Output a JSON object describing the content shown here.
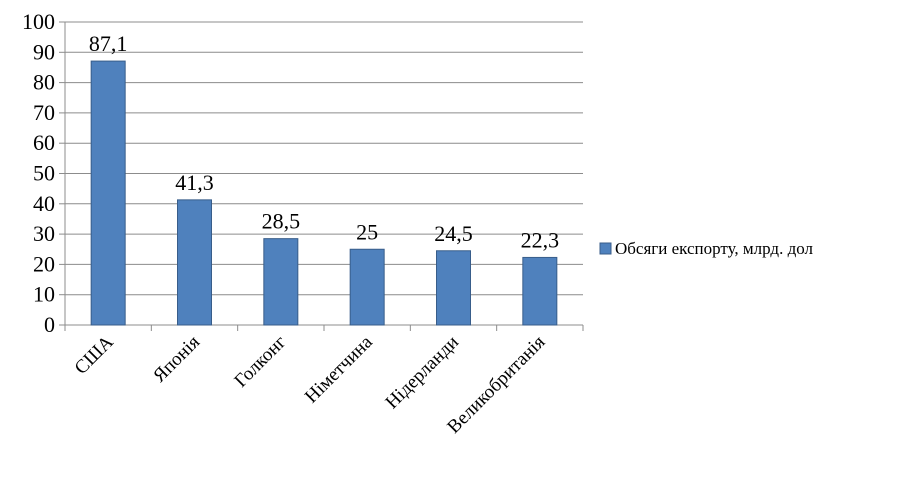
{
  "chart_data": {
    "type": "bar",
    "categories": [
      "США",
      "Японія",
      "Голконг",
      "Німетчина",
      "Нідерланди",
      "Великобританія"
    ],
    "series": [
      {
        "name": "Обсяги експорту, млрд. дол",
        "values": [
          87.1,
          41.3,
          28.5,
          25,
          24.5,
          22.3
        ],
        "labels": [
          "87,1",
          "41,3",
          "28,5",
          "25",
          "24,5",
          "22,3"
        ],
        "color": "#4f81bd"
      }
    ],
    "ylim": [
      0,
      100
    ],
    "yticks": [
      "0",
      "10",
      "20",
      "30",
      "40",
      "50",
      "60",
      "70",
      "80",
      "90",
      "100"
    ],
    "grid": true,
    "legend": "right"
  }
}
